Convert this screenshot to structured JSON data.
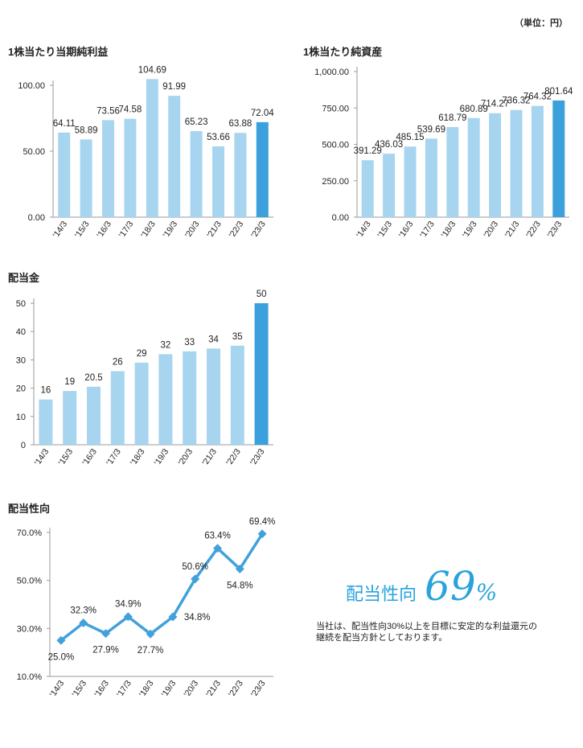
{
  "unit_label": "（単位：円）",
  "colors": {
    "bar": "#a7d5ef",
    "highlight": "#3ba0dc",
    "line": "#41a1db",
    "axis": "#999999"
  },
  "chart_data": [
    {
      "id": "eps",
      "type": "bar",
      "title": "1株当たり当期純利益",
      "categories": [
        "'14/3",
        "'15/3",
        "'16/3",
        "'17/3",
        "'18/3",
        "'19/3",
        "'20/3",
        "'21/3",
        "'22/3",
        "'23/3"
      ],
      "values": [
        64.11,
        58.89,
        73.56,
        74.58,
        104.69,
        91.99,
        65.23,
        53.66,
        63.88,
        72.04
      ],
      "value_labels": [
        "64.11",
        "58.89",
        "73.56",
        "74.58",
        "104.69",
        "91.99",
        "65.23",
        "53.66",
        "63.88",
        "72.04"
      ],
      "ylim": [
        0,
        100
      ],
      "yticks": [
        "0.00",
        "50.00",
        "100.00"
      ],
      "highlight_index": 9
    },
    {
      "id": "bps",
      "type": "bar",
      "title": "1株当たり純資産",
      "categories": [
        "'14/3",
        "'15/3",
        "'16/3",
        "'17/3",
        "'18/3",
        "'19/3",
        "'20/3",
        "'21/3",
        "'22/3",
        "'23/3"
      ],
      "values": [
        391.29,
        436.03,
        485.15,
        539.69,
        618.79,
        680.89,
        714.27,
        736.32,
        764.32,
        801.64
      ],
      "value_labels": [
        "391.29",
        "436.03",
        "485.15",
        "539.69",
        "618.79",
        "680.89",
        "714.27",
        "736.32",
        "764.32",
        "801.64"
      ],
      "ylim": [
        0,
        1000
      ],
      "yticks": [
        "0.00",
        "250.00",
        "500.00",
        "750.00",
        "1,000.00"
      ],
      "highlight_index": 9
    },
    {
      "id": "dividend",
      "type": "bar",
      "title": "配当金",
      "categories": [
        "'14/3",
        "'15/3",
        "'16/3",
        "'17/3",
        "'18/3",
        "'19/3",
        "'20/3",
        "'21/3",
        "'22/3",
        "'23/3"
      ],
      "values": [
        16,
        19,
        20.5,
        26,
        29,
        32,
        33,
        34,
        35,
        50
      ],
      "value_labels": [
        "16",
        "19",
        "20.5",
        "26",
        "29",
        "32",
        "33",
        "34",
        "35",
        "50"
      ],
      "ylim": [
        0,
        50
      ],
      "yticks": [
        "0",
        "10",
        "20",
        "30",
        "40",
        "50"
      ],
      "highlight_index": 9
    },
    {
      "id": "payout_ratio",
      "type": "line",
      "title": "配当性向",
      "categories": [
        "'14/3",
        "'15/3",
        "'16/3",
        "'17/3",
        "'18/3",
        "'19/3",
        "'20/3",
        "'21/3",
        "'22/3",
        "'23/3"
      ],
      "values": [
        25.0,
        32.3,
        27.9,
        34.9,
        27.7,
        34.8,
        50.6,
        63.4,
        54.8,
        69.4
      ],
      "value_labels": [
        "25.0%",
        "32.3%",
        "27.9%",
        "34.9%",
        "27.7%",
        "34.8%",
        "50.6%",
        "63.4%",
        "54.8%",
        "69.4%"
      ],
      "label_pos": [
        "below",
        "above",
        "below",
        "above",
        "below",
        "right",
        "above",
        "above",
        "below",
        "above"
      ],
      "ylim": [
        10,
        70
      ],
      "yticks": [
        "10.0%",
        "30.0%",
        "50.0%",
        "70.0%"
      ]
    }
  ],
  "payout_highlight": {
    "label": "配当性向",
    "value": "69",
    "percent": "%",
    "note": "当社は、配当性向30%以上を目標に安定的な利益還元の継続を配当方針としております。"
  }
}
